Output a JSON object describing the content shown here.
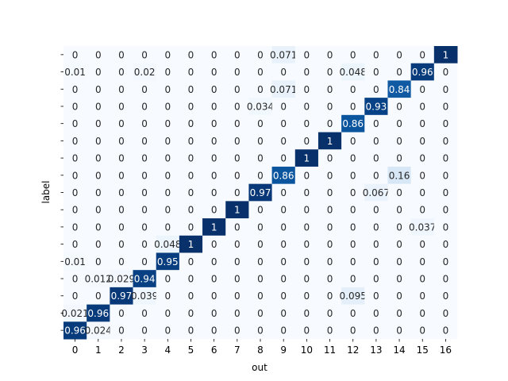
{
  "chart_data": {
    "type": "heatmap",
    "xlabel": "out",
    "ylabel": "label",
    "colormap": "Blues",
    "x_categories": [
      "0",
      "1",
      "2",
      "3",
      "4",
      "5",
      "6",
      "7",
      "8",
      "9",
      "10",
      "11",
      "12",
      "13",
      "14",
      "15",
      "16"
    ],
    "y_tick_labels_visible": false,
    "colorbar": false,
    "values": [
      [
        0,
        0,
        0,
        0,
        0,
        0,
        0,
        0,
        0,
        0.071,
        0,
        0,
        0,
        0,
        0,
        0,
        1
      ],
      [
        0.01,
        0,
        0,
        0.02,
        0,
        0,
        0,
        0,
        0,
        0,
        0,
        0,
        0.048,
        0,
        0,
        0.96,
        0
      ],
      [
        0,
        0,
        0,
        0,
        0,
        0,
        0,
        0,
        0,
        0.071,
        0,
        0,
        0,
        0,
        0.84,
        0,
        0
      ],
      [
        0,
        0,
        0,
        0,
        0,
        0,
        0,
        0,
        0.034,
        0,
        0,
        0,
        0,
        0.93,
        0,
        0,
        0
      ],
      [
        0,
        0,
        0,
        0,
        0,
        0,
        0,
        0,
        0,
        0,
        0,
        0,
        0.86,
        0,
        0,
        0,
        0
      ],
      [
        0,
        0,
        0,
        0,
        0,
        0,
        0,
        0,
        0,
        0,
        0,
        1,
        0,
        0,
        0,
        0,
        0
      ],
      [
        0,
        0,
        0,
        0,
        0,
        0,
        0,
        0,
        0,
        0,
        1,
        0,
        0,
        0,
        0,
        0,
        0
      ],
      [
        0,
        0,
        0,
        0,
        0,
        0,
        0,
        0,
        0,
        0.86,
        0,
        0,
        0,
        0,
        0.16,
        0,
        0
      ],
      [
        0,
        0,
        0,
        0,
        0,
        0,
        0,
        0,
        0.97,
        0,
        0,
        0,
        0,
        0.067,
        0,
        0,
        0
      ],
      [
        0,
        0,
        0,
        0,
        0,
        0,
        0,
        1,
        0,
        0,
        0,
        0,
        0,
        0,
        0,
        0,
        0
      ],
      [
        0,
        0,
        0,
        0,
        0,
        0,
        1,
        0,
        0,
        0,
        0,
        0,
        0,
        0,
        0,
        0.037,
        0
      ],
      [
        0,
        0,
        0,
        0,
        0.048,
        1,
        0,
        0,
        0,
        0,
        0,
        0,
        0,
        0,
        0,
        0,
        0
      ],
      [
        0.01,
        0,
        0,
        0,
        0.95,
        0,
        0,
        0,
        0,
        0,
        0,
        0,
        0,
        0,
        0,
        0,
        0
      ],
      [
        0,
        0.012,
        0.029,
        0.94,
        0,
        0,
        0,
        0,
        0,
        0,
        0,
        0,
        0,
        0,
        0,
        0,
        0
      ],
      [
        0,
        0,
        0.97,
        0.039,
        0,
        0,
        0,
        0,
        0,
        0,
        0,
        0,
        0.095,
        0,
        0,
        0,
        0
      ],
      [
        0.021,
        0.96,
        0,
        0,
        0,
        0,
        0,
        0,
        0,
        0,
        0,
        0,
        0,
        0,
        0,
        0,
        0
      ],
      [
        0.96,
        0.024,
        0,
        0,
        0,
        0,
        0,
        0,
        0,
        0,
        0,
        0,
        0,
        0,
        0,
        0,
        0
      ]
    ]
  }
}
